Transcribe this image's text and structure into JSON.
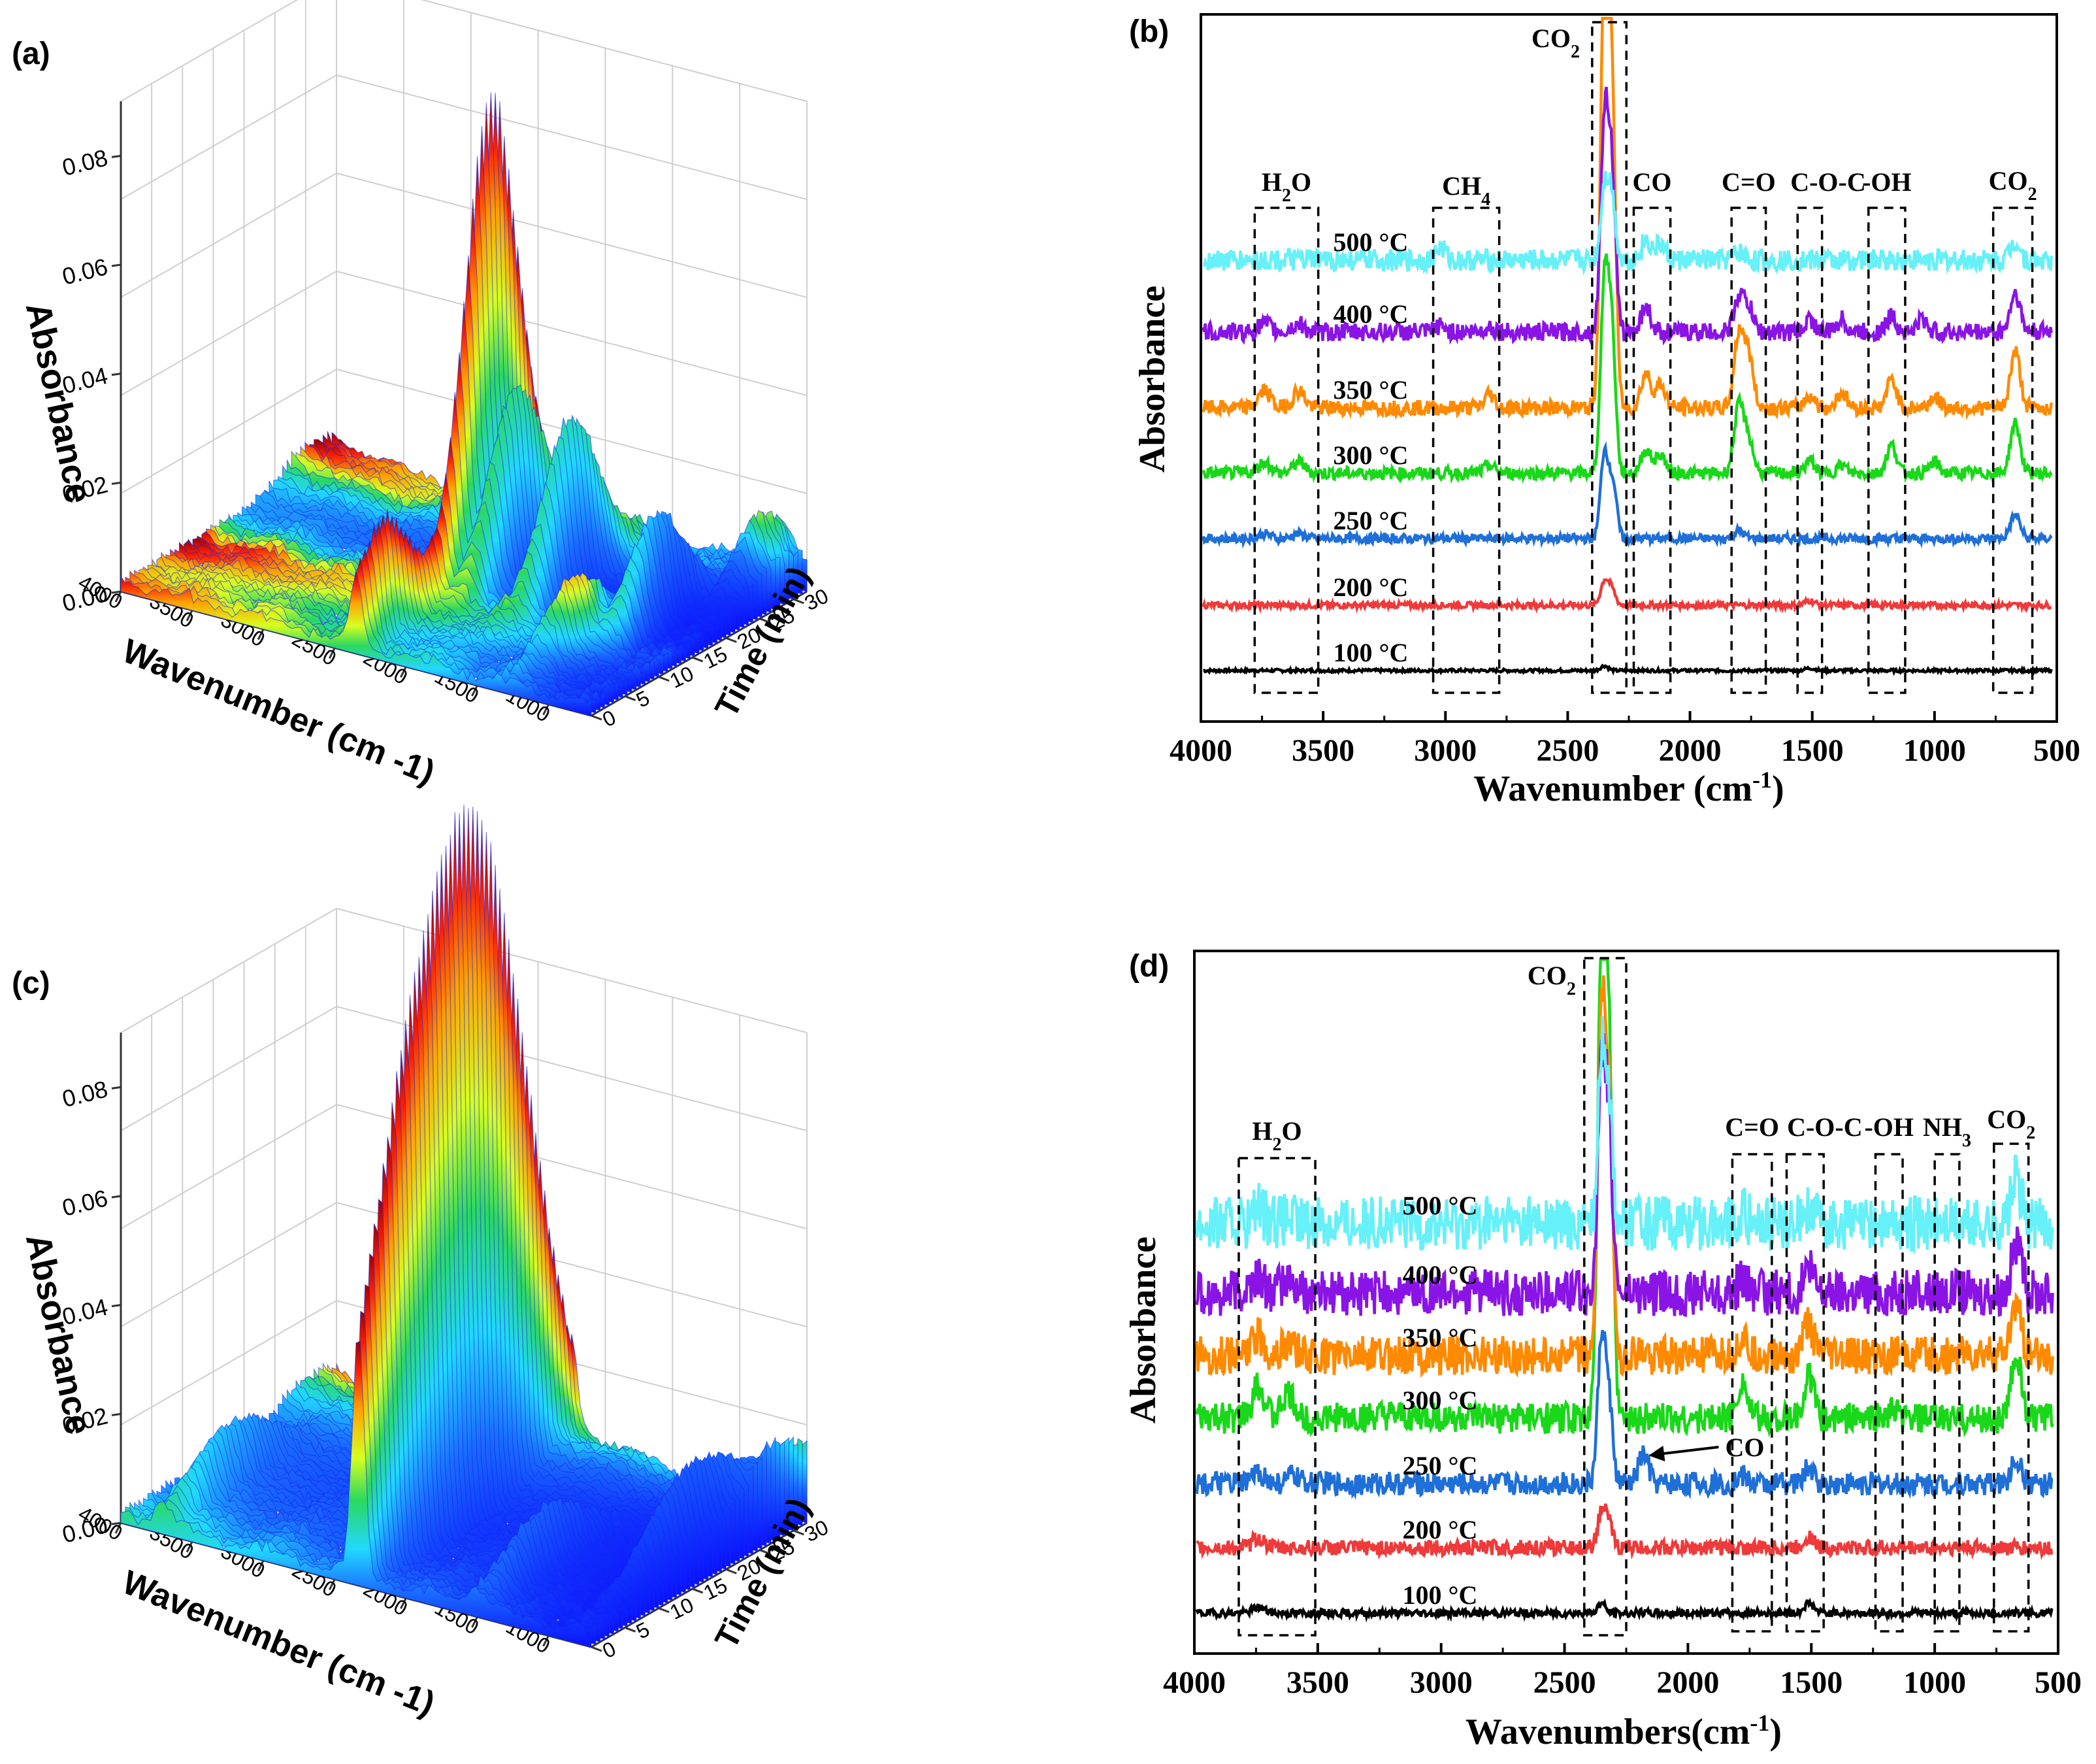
{
  "colors": {
    "black": "#000000",
    "temp_100": "#000000",
    "temp_200": "#ee3a3a",
    "temp_250": "#1f6fd8",
    "temp_300": "#19d819",
    "temp_350": "#ff8a00",
    "temp_400": "#8a14e6",
    "temp_500": "#66f0f8"
  },
  "chart_data": [
    {
      "panel": "(a)",
      "type": "surface3d",
      "title": "",
      "xlabel": "Wavenumber (cm -1)",
      "ylabel": "Time (min)",
      "zlabel": "Absorbance",
      "x_ticks": [
        "4000",
        "3500",
        "3000",
        "2500",
        "2000",
        "1500",
        "1000"
      ],
      "y_ticks": [
        "0",
        "5",
        "10",
        "15",
        "20",
        "25",
        "30"
      ],
      "z_ticks": [
        "0.00",
        "0.02",
        "0.04",
        "0.06",
        "0.08"
      ],
      "xlim": [
        4000,
        700
      ],
      "ylim": [
        0,
        32
      ],
      "zlim": [
        0,
        0.09
      ],
      "peaks": [
        {
          "x": 2350,
          "t": 20,
          "z": 0.085
        },
        {
          "x": 2180,
          "t": 20,
          "z": 0.034
        },
        {
          "x": 1800,
          "t": 20,
          "z": 0.03
        },
        {
          "x": 2350,
          "t": 4,
          "z": 0.02
        },
        {
          "x": 1300,
          "t": 10,
          "z": 0.012
        },
        {
          "x": 1100,
          "t": 18,
          "z": 0.02
        },
        {
          "x": 850,
          "t": 28,
          "z": 0.01
        }
      ]
    },
    {
      "panel": "(b)",
      "type": "line",
      "xlabel": "Wavenumber (cm-1)",
      "ylabel": "Absorbance",
      "xlim": [
        4000,
        500
      ],
      "x_ticks": [
        "4000",
        "3500",
        "3000",
        "2500",
        "2000",
        "1500",
        "1000",
        "500"
      ],
      "region_labels": [
        {
          "label": "H2O",
          "x1": 3780,
          "x2": 3520
        },
        {
          "label": "CH4",
          "x1": 3050,
          "x2": 2780
        },
        {
          "label": "CO2",
          "x1": 2400,
          "x2": 2260
        },
        {
          "label": "CO",
          "x1": 2230,
          "x2": 2080
        },
        {
          "label": "C=O",
          "x1": 1830,
          "x2": 1690
        },
        {
          "label": "C-O-C",
          "x1": 1560,
          "x2": 1460
        },
        {
          "label": "-OH",
          "x1": 1270,
          "x2": 1120
        },
        {
          "label": "CO2",
          "x1": 760,
          "x2": 600
        }
      ],
      "series": [
        {
          "name": "100 °C",
          "peaks": [
            [
              2350,
              0.3
            ],
            [
              1510,
              0.15
            ]
          ]
        },
        {
          "name": "200 °C",
          "peaks": [
            [
              2350,
              1.5
            ],
            [
              2320,
              1.0
            ],
            [
              1510,
              0.3
            ]
          ]
        },
        {
          "name": "250 °C",
          "peaks": [
            [
              2350,
              5.5
            ],
            [
              2315,
              3.5
            ],
            [
              1800,
              0.5
            ],
            [
              670,
              1.5
            ],
            [
              3740,
              0.3
            ],
            [
              3600,
              0.3
            ]
          ]
        },
        {
          "name": "300 °C",
          "peaks": [
            [
              2350,
              12
            ],
            [
              2320,
              9
            ],
            [
              2180,
              1.5
            ],
            [
              2120,
              1.2
            ],
            [
              1800,
              4.2
            ],
            [
              1760,
              2
            ],
            [
              1510,
              0.8
            ],
            [
              1380,
              0.5
            ],
            [
              1175,
              1.8
            ],
            [
              1000,
              0.7
            ],
            [
              670,
              3.2
            ],
            [
              3740,
              0.7
            ],
            [
              3600,
              0.7
            ],
            [
              2820,
              0.5
            ]
          ]
        },
        {
          "name": "350 °C",
          "peaks": [
            [
              2350,
              28
            ],
            [
              2320,
              20
            ],
            [
              2180,
              2.2
            ],
            [
              2120,
              1.5
            ],
            [
              1800,
              4.6
            ],
            [
              1760,
              3.2
            ],
            [
              1510,
              0.8
            ],
            [
              1380,
              1
            ],
            [
              1175,
              1.8
            ],
            [
              1000,
              0.7
            ],
            [
              670,
              3.6
            ],
            [
              3740,
              1.1
            ],
            [
              3600,
              1.1
            ],
            [
              2820,
              0.9
            ]
          ]
        },
        {
          "name": "400 °C",
          "peaks": [
            [
              2350,
              13
            ],
            [
              2320,
              10
            ],
            [
              2180,
              1.6
            ],
            [
              1800,
              2.2
            ],
            [
              1760,
              1.5
            ],
            [
              1510,
              0.8
            ],
            [
              1380,
              0.8
            ],
            [
              1175,
              1.0
            ],
            [
              1050,
              0.8
            ],
            [
              670,
              2.5
            ],
            [
              3740,
              0.5
            ],
            [
              3600,
              0.5
            ],
            [
              3020,
              0.4
            ],
            [
              2820,
              0.3
            ]
          ]
        },
        {
          "name": "500 °C",
          "peaks": [
            [
              2350,
              4.5
            ],
            [
              2320,
              4
            ],
            [
              2180,
              1.3
            ],
            [
              2120,
              1.0
            ],
            [
              1800,
              0.5
            ],
            [
              670,
              1.2
            ],
            [
              3020,
              0.8
            ]
          ]
        }
      ],
      "labels": {
        "h2o": "H",
        "h2o_sub": "2",
        "h2o_tail": "O",
        "ch4": "CH",
        "ch4_sub": "4",
        "co2": "CO",
        "co2_sub": "2",
        "co": "CO",
        "co_double": "C=O",
        "coc": "C-O-C",
        "oh": "-OH"
      }
    },
    {
      "panel": "(c)",
      "type": "surface3d",
      "xlabel": "Wavenumber (cm -1)",
      "ylabel": "Time (min)",
      "zlabel": "Absorbance",
      "x_ticks": [
        "4000",
        "3500",
        "3000",
        "2500",
        "2000",
        "1500",
        "1000"
      ],
      "y_ticks": [
        "0",
        "5",
        "10",
        "15",
        "20",
        "25",
        "30"
      ],
      "z_ticks": [
        "0.00",
        "0.02",
        "0.04",
        "0.06",
        "0.08"
      ],
      "xlim": [
        4000,
        700
      ],
      "ylim": [
        0,
        32
      ],
      "zlim": [
        0,
        0.09
      ],
      "peaks": [
        {
          "x": 2350,
          "t": 20,
          "z": 0.09
        },
        {
          "x": 2350,
          "t": 12,
          "z": 0.055
        },
        {
          "x": 2330,
          "t": 5,
          "z": 0.05
        },
        {
          "x": 3700,
          "t": 10,
          "z": 0.012
        },
        {
          "x": 1500,
          "t": 10,
          "z": 0.012
        },
        {
          "x": 850,
          "t": 18,
          "z": 0.018
        },
        {
          "x": 700,
          "t": 28,
          "z": 0.01
        }
      ]
    },
    {
      "panel": "(d)",
      "type": "line",
      "xlabel": "Wavenumbers(cm-1)",
      "ylabel": "Absorbance",
      "xlim": [
        4000,
        500
      ],
      "x_ticks": [
        "4000",
        "3500",
        "3000",
        "2500",
        "2000",
        "1500",
        "1000",
        "500"
      ],
      "region_labels": [
        {
          "label": "H2O",
          "x1": 3820,
          "x2": 3510
        },
        {
          "label": "CO2",
          "x1": 2420,
          "x2": 2250
        },
        {
          "label": "C=O",
          "x1": 1820,
          "x2": 1660
        },
        {
          "label": "C-O-C",
          "x1": 1600,
          "x2": 1450
        },
        {
          "label": "-OH",
          "x1": 1240,
          "x2": 1130
        },
        {
          "label": "NH3",
          "x1": 1000,
          "x2": 900
        },
        {
          "label": "CO2",
          "x1": 760,
          "x2": 620
        }
      ],
      "series": [
        {
          "name": "100 °C",
          "peaks": [
            [
              2350,
              0.5
            ],
            [
              1510,
              0.5
            ],
            [
              3740,
              0.3
            ]
          ]
        },
        {
          "name": "200 °C",
          "peaks": [
            [
              2350,
              1.8
            ],
            [
              2320,
              1.2
            ],
            [
              1510,
              0.6
            ],
            [
              3740,
              0.5
            ]
          ]
        },
        {
          "name": "250 °C",
          "peaks": [
            [
              2350,
              7.2
            ],
            [
              2320,
              4
            ],
            [
              2180,
              1.5
            ],
            [
              1510,
              0.8
            ],
            [
              670,
              1.2
            ],
            [
              3740,
              0.6
            ],
            [
              3600,
              0.4
            ],
            [
              1780,
              0.4
            ]
          ]
        },
        {
          "name": "300 °C",
          "peaks": [
            [
              2350,
              24
            ],
            [
              2320,
              18
            ],
            [
              1780,
              2
            ],
            [
              1510,
              2.2
            ],
            [
              670,
              3.3
            ],
            [
              3740,
              1.6
            ],
            [
              3620,
              1.2
            ],
            [
              1170,
              0.4
            ]
          ]
        },
        {
          "name": "350 °C",
          "peaks": [
            [
              2350,
              16
            ],
            [
              2320,
              12
            ],
            [
              1780,
              0.9
            ],
            [
              1510,
              1.6
            ],
            [
              670,
              2.7
            ],
            [
              3740,
              1.0
            ],
            [
              3620,
              0.7
            ]
          ]
        },
        {
          "name": "400 °C",
          "peaks": [
            [
              2350,
              11
            ],
            [
              2320,
              8
            ],
            [
              1780,
              0.6
            ],
            [
              1510,
              1.1
            ],
            [
              670,
              2.4
            ],
            [
              3740,
              0.8
            ],
            [
              3620,
              0.5
            ]
          ]
        },
        {
          "name": "500 °C",
          "peaks": [
            [
              2350,
              8
            ],
            [
              2320,
              6
            ],
            [
              1780,
              0.5
            ],
            [
              1510,
              0.9
            ],
            [
              670,
              2.3
            ],
            [
              3740,
              0.7
            ],
            [
              3620,
              0.3
            ]
          ]
        }
      ],
      "labels": {
        "h2o": "H",
        "h2o_sub": "2",
        "h2o_tail": "O",
        "co2": "CO",
        "co2_sub": "2",
        "co_double": "C=O",
        "coc": "C-O-C",
        "oh": "-OH",
        "nh3": "NH",
        "nh3_sub": "3",
        "co_arrow": "CO"
      }
    }
  ]
}
